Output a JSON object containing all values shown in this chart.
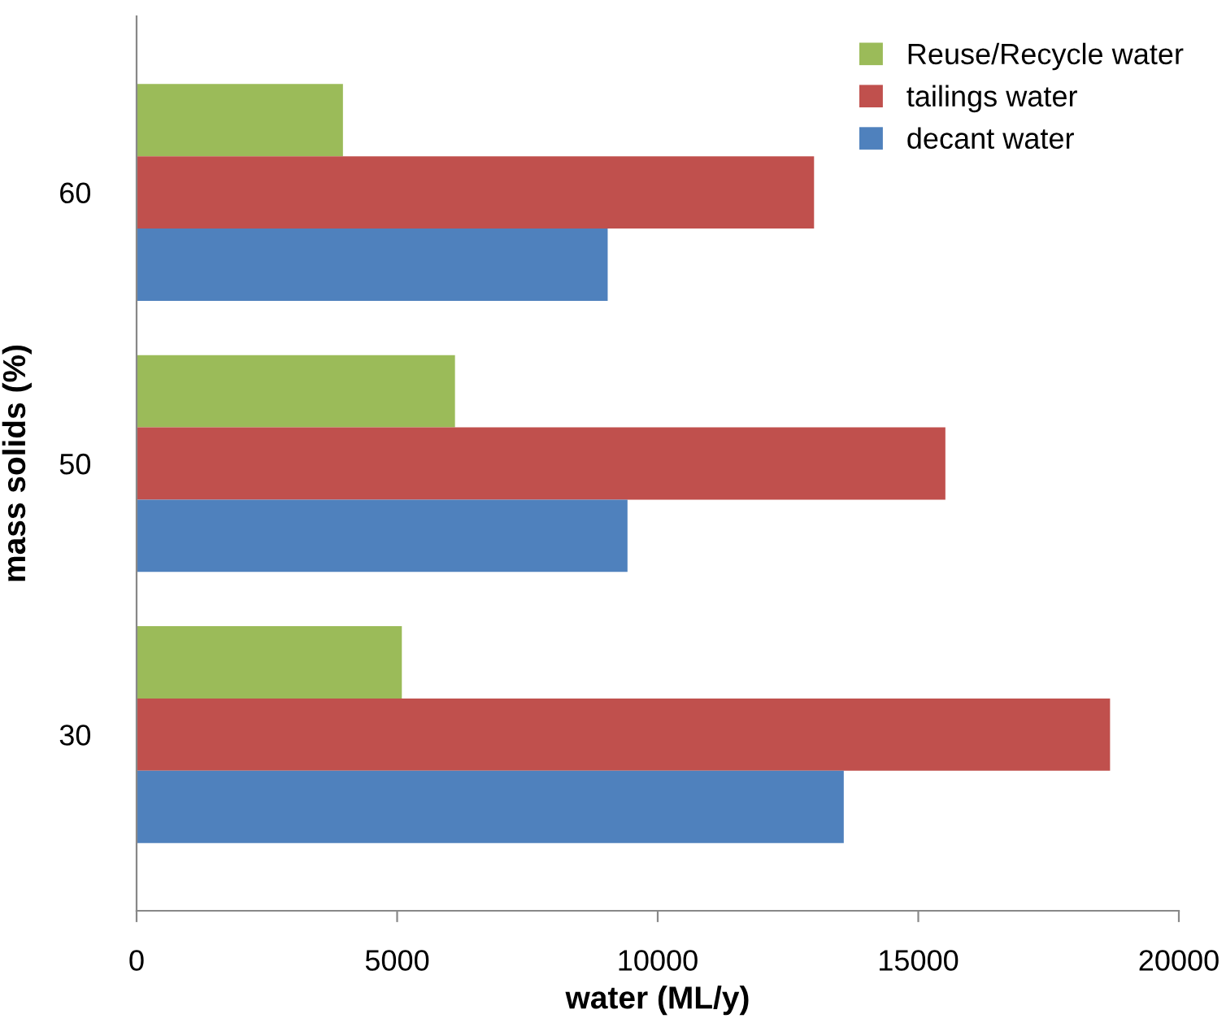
{
  "chart_data": {
    "type": "bar",
    "orientation": "horizontal",
    "xlabel": "water (ML/y)",
    "ylabel": "mass solids (%)",
    "categories": [
      "60",
      "50",
      "30"
    ],
    "series": [
      {
        "name": "Reuse/Recycle water",
        "color": "#9bbb59",
        "values": [
          3960,
          6110,
          5090
        ]
      },
      {
        "name": "tailings water",
        "color": "#c0504d",
        "values": [
          13000,
          15520,
          18680
        ]
      },
      {
        "name": "decant water",
        "color": "#4f81bd",
        "values": [
          9040,
          9420,
          13570
        ]
      }
    ],
    "xlim": [
      0,
      20000
    ],
    "xticks": [
      0,
      5000,
      10000,
      15000,
      20000
    ],
    "grid": false,
    "legend": "top right"
  }
}
